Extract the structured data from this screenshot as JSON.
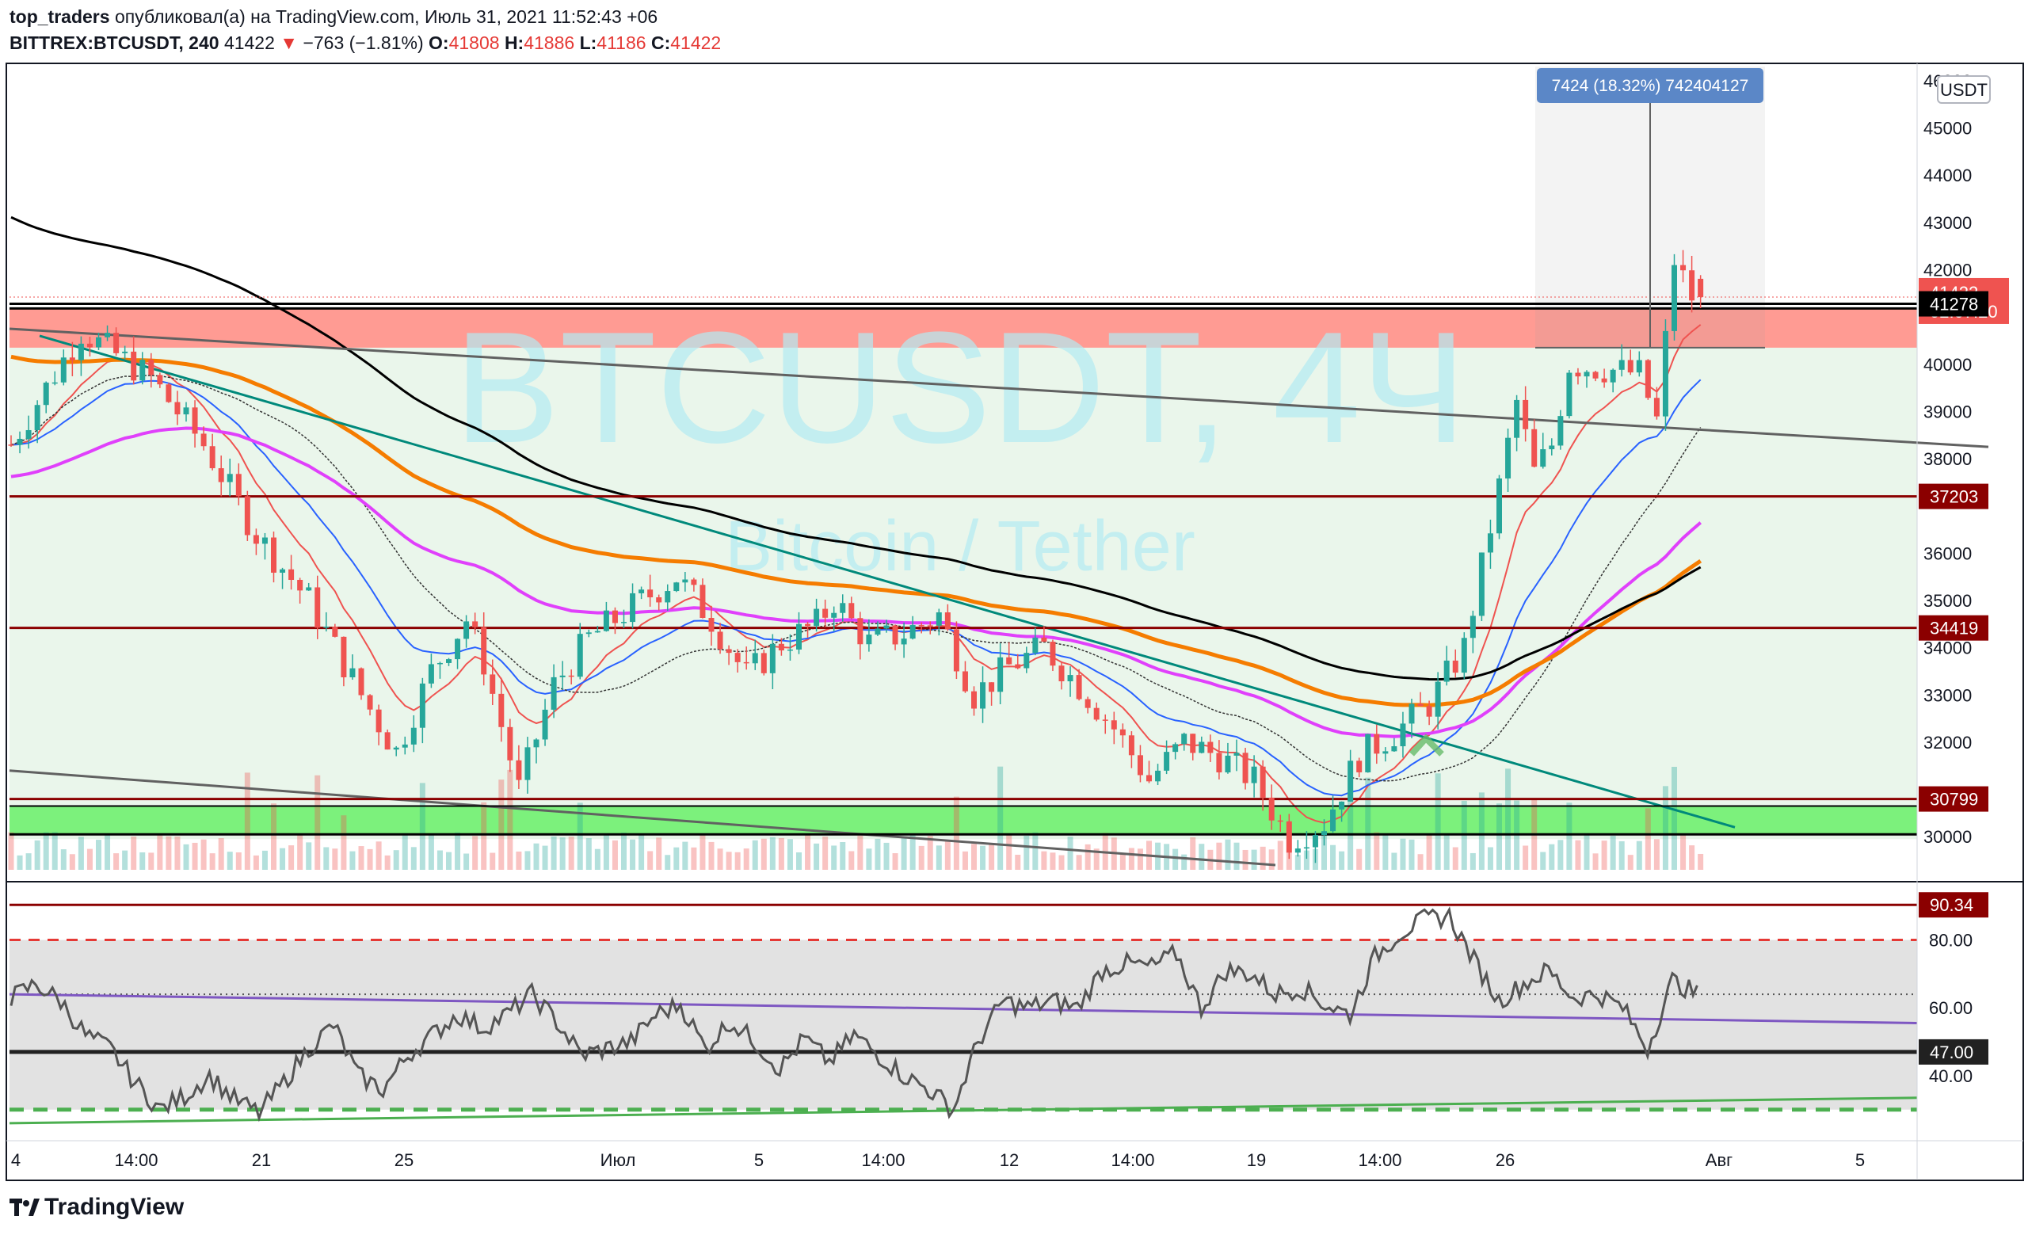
{
  "header": {
    "author": "top_traders",
    "published_text": "опубликовал(а) на TradingView.com, Июль 31, 2021 11:52:43 +06",
    "symbol_tf": "BITTREX:BTCUSDT, 240",
    "last": "41422",
    "change_arrow": "▼",
    "change": "−763 (−1.81%)",
    "o_label": "O:",
    "o_value": "41808",
    "h_label": "H:",
    "h_value": "41886",
    "l_label": "L:",
    "l_value": "41186",
    "c_label": "C:",
    "c_value": "41422"
  },
  "footer": {
    "brand": "TradingView",
    "logo_icon": "tradingview-logo-icon"
  },
  "watermark": {
    "symbol": "BTCUSDT, 4Ч",
    "description": "Bitcoin / Tether"
  },
  "measure_label": "7424 (18.32%) 742404127",
  "currency_badge": "USDT",
  "colors": {
    "bull": "#26a69a",
    "bear": "#ef5350",
    "ema_orange": "#f57c00",
    "ema_magenta": "#e040fb",
    "ma_black": "#000000",
    "ma_blue": "#2962ff",
    "ma_red": "#ef5350",
    "level_line": "#8b0000",
    "resistance_zone": "#ff8a80",
    "support_zone": "#69f069",
    "range_zone": "#e8f5e9",
    "trend_teal": "#00897b",
    "trend_gray": "#616161",
    "rsi_line": "#555555",
    "rsi_trend": "#7e57c2",
    "rsi_support": "#4caf50"
  },
  "chart_data": {
    "type": "candlestick",
    "symbol": "BITTREX:BTCUSDT",
    "timeframe": "240",
    "x_tick_labels": [
      "4",
      "14:00",
      "21",
      "25",
      "Июл",
      "5",
      "14:00",
      "12",
      "14:00",
      "19",
      "14:00",
      "26",
      "Авг",
      "5"
    ],
    "ylim": [
      29300,
      46300
    ],
    "y_ticks": [
      30000,
      32000,
      33000,
      34000,
      35000,
      36000,
      38000,
      39000,
      40000,
      42000,
      43000,
      44000,
      45000,
      46000
    ],
    "y_tick_labels": [
      "30000",
      "32000",
      "33000",
      "34000",
      "35000",
      "36000",
      "38000",
      "39000",
      "40000",
      "42000",
      "43000",
      "44000",
      "45000",
      "46000"
    ],
    "price_labels": [
      {
        "value": 41422,
        "text": "41422",
        "countdown": "02:07:20",
        "kind": "last"
      },
      {
        "value": 41278,
        "text": "41278",
        "kind": "level"
      },
      {
        "value": 37203,
        "text": "37203",
        "kind": "level"
      },
      {
        "value": 34419,
        "text": "34419",
        "kind": "level"
      },
      {
        "value": 30799,
        "text": "30799",
        "kind": "level"
      }
    ],
    "zones": [
      {
        "name": "resistance",
        "from": 40350,
        "to": 41180
      },
      {
        "name": "support",
        "from": 30050,
        "to": 30650
      }
    ],
    "ohlc_last": {
      "open": 41808,
      "high": 41886,
      "low": 41186,
      "close": 41422
    },
    "close_path": [
      [
        0,
        38300
      ],
      [
        4,
        40700
      ],
      [
        8,
        39700
      ],
      [
        11,
        38300
      ],
      [
        14,
        36400
      ],
      [
        17,
        35000
      ],
      [
        20,
        33000
      ],
      [
        22,
        31800
      ],
      [
        24,
        33500
      ],
      [
        26,
        34600
      ],
      [
        27,
        33700
      ],
      [
        29,
        31000
      ],
      [
        31,
        33200
      ],
      [
        33,
        34200
      ],
      [
        36,
        35000
      ],
      [
        38,
        35500
      ],
      [
        40,
        34600
      ],
      [
        42,
        33400
      ],
      [
        44,
        34100
      ],
      [
        46,
        34500
      ],
      [
        47,
        35000
      ],
      [
        49,
        34100
      ],
      [
        51,
        34300
      ],
      [
        53,
        34700
      ],
      [
        55,
        33000
      ],
      [
        57,
        33600
      ],
      [
        59,
        34000
      ],
      [
        61,
        33200
      ],
      [
        63,
        32300
      ],
      [
        65,
        31200
      ],
      [
        67,
        32000
      ],
      [
        69,
        31700
      ],
      [
        71,
        31200
      ],
      [
        73,
        29950
      ],
      [
        75,
        30300
      ],
      [
        77,
        31700
      ],
      [
        79,
        32200
      ],
      [
        81,
        32800
      ],
      [
        83,
        34000
      ],
      [
        85,
        37400
      ],
      [
        86,
        39200
      ],
      [
        87,
        37700
      ],
      [
        88,
        38300
      ],
      [
        89,
        40000
      ],
      [
        91,
        39900
      ],
      [
        93,
        39800
      ],
      [
        94,
        38800
      ],
      [
        95,
        42200
      ],
      [
        96,
        41422
      ]
    ],
    "candle_count": 194,
    "rsi": {
      "ylim": [
        22,
        96
      ],
      "ticks": [
        40,
        60,
        80
      ],
      "tick_labels": [
        "40.00",
        "60.00",
        "80.00"
      ],
      "levels": [
        {
          "value": 90.34,
          "text": "90.34"
        },
        {
          "value": 47,
          "text": "47.00"
        }
      ],
      "overbought": 80,
      "oversold": 30,
      "middle": 64,
      "path": [
        [
          0,
          63
        ],
        [
          2,
          67
        ],
        [
          4,
          62
        ],
        [
          6,
          52
        ],
        [
          8,
          48
        ],
        [
          10,
          38
        ],
        [
          12,
          30
        ],
        [
          14,
          34
        ],
        [
          16,
          40
        ],
        [
          18,
          33
        ],
        [
          20,
          29
        ],
        [
          22,
          38
        ],
        [
          24,
          48
        ],
        [
          26,
          55
        ],
        [
          28,
          40
        ],
        [
          30,
          36
        ],
        [
          32,
          46
        ],
        [
          34,
          52
        ],
        [
          36,
          58
        ],
        [
          38,
          54
        ],
        [
          40,
          58
        ],
        [
          42,
          64
        ],
        [
          44,
          56
        ],
        [
          46,
          46
        ],
        [
          48,
          48
        ],
        [
          50,
          50
        ],
        [
          52,
          58
        ],
        [
          54,
          61
        ],
        [
          56,
          48
        ],
        [
          58,
          56
        ],
        [
          60,
          50
        ],
        [
          62,
          42
        ],
        [
          64,
          51
        ],
        [
          66,
          44
        ],
        [
          68,
          52
        ],
        [
          70,
          46
        ],
        [
          72,
          40
        ],
        [
          74,
          36
        ],
        [
          76,
          30
        ],
        [
          78,
          50
        ],
        [
          80,
          62
        ],
        [
          82,
          60
        ],
        [
          84,
          62
        ],
        [
          86,
          60
        ],
        [
          88,
          71
        ],
        [
          90,
          73
        ],
        [
          92,
          72
        ],
        [
          94,
          76
        ],
        [
          96,
          60
        ],
        [
          98,
          71
        ],
        [
          100,
          70
        ],
        [
          102,
          64
        ],
        [
          104,
          66
        ],
        [
          106,
          61
        ],
        [
          108,
          58
        ],
        [
          110,
          75
        ],
        [
          112,
          82
        ],
        [
          114,
          86
        ],
        [
          116,
          87
        ],
        [
          118,
          74
        ],
        [
          120,
          62
        ],
        [
          122,
          67
        ],
        [
          124,
          71
        ],
        [
          126,
          63
        ],
        [
          128,
          64
        ],
        [
          130,
          60
        ],
        [
          132,
          48
        ],
        [
          134,
          68
        ],
        [
          136,
          64
        ]
      ]
    }
  }
}
